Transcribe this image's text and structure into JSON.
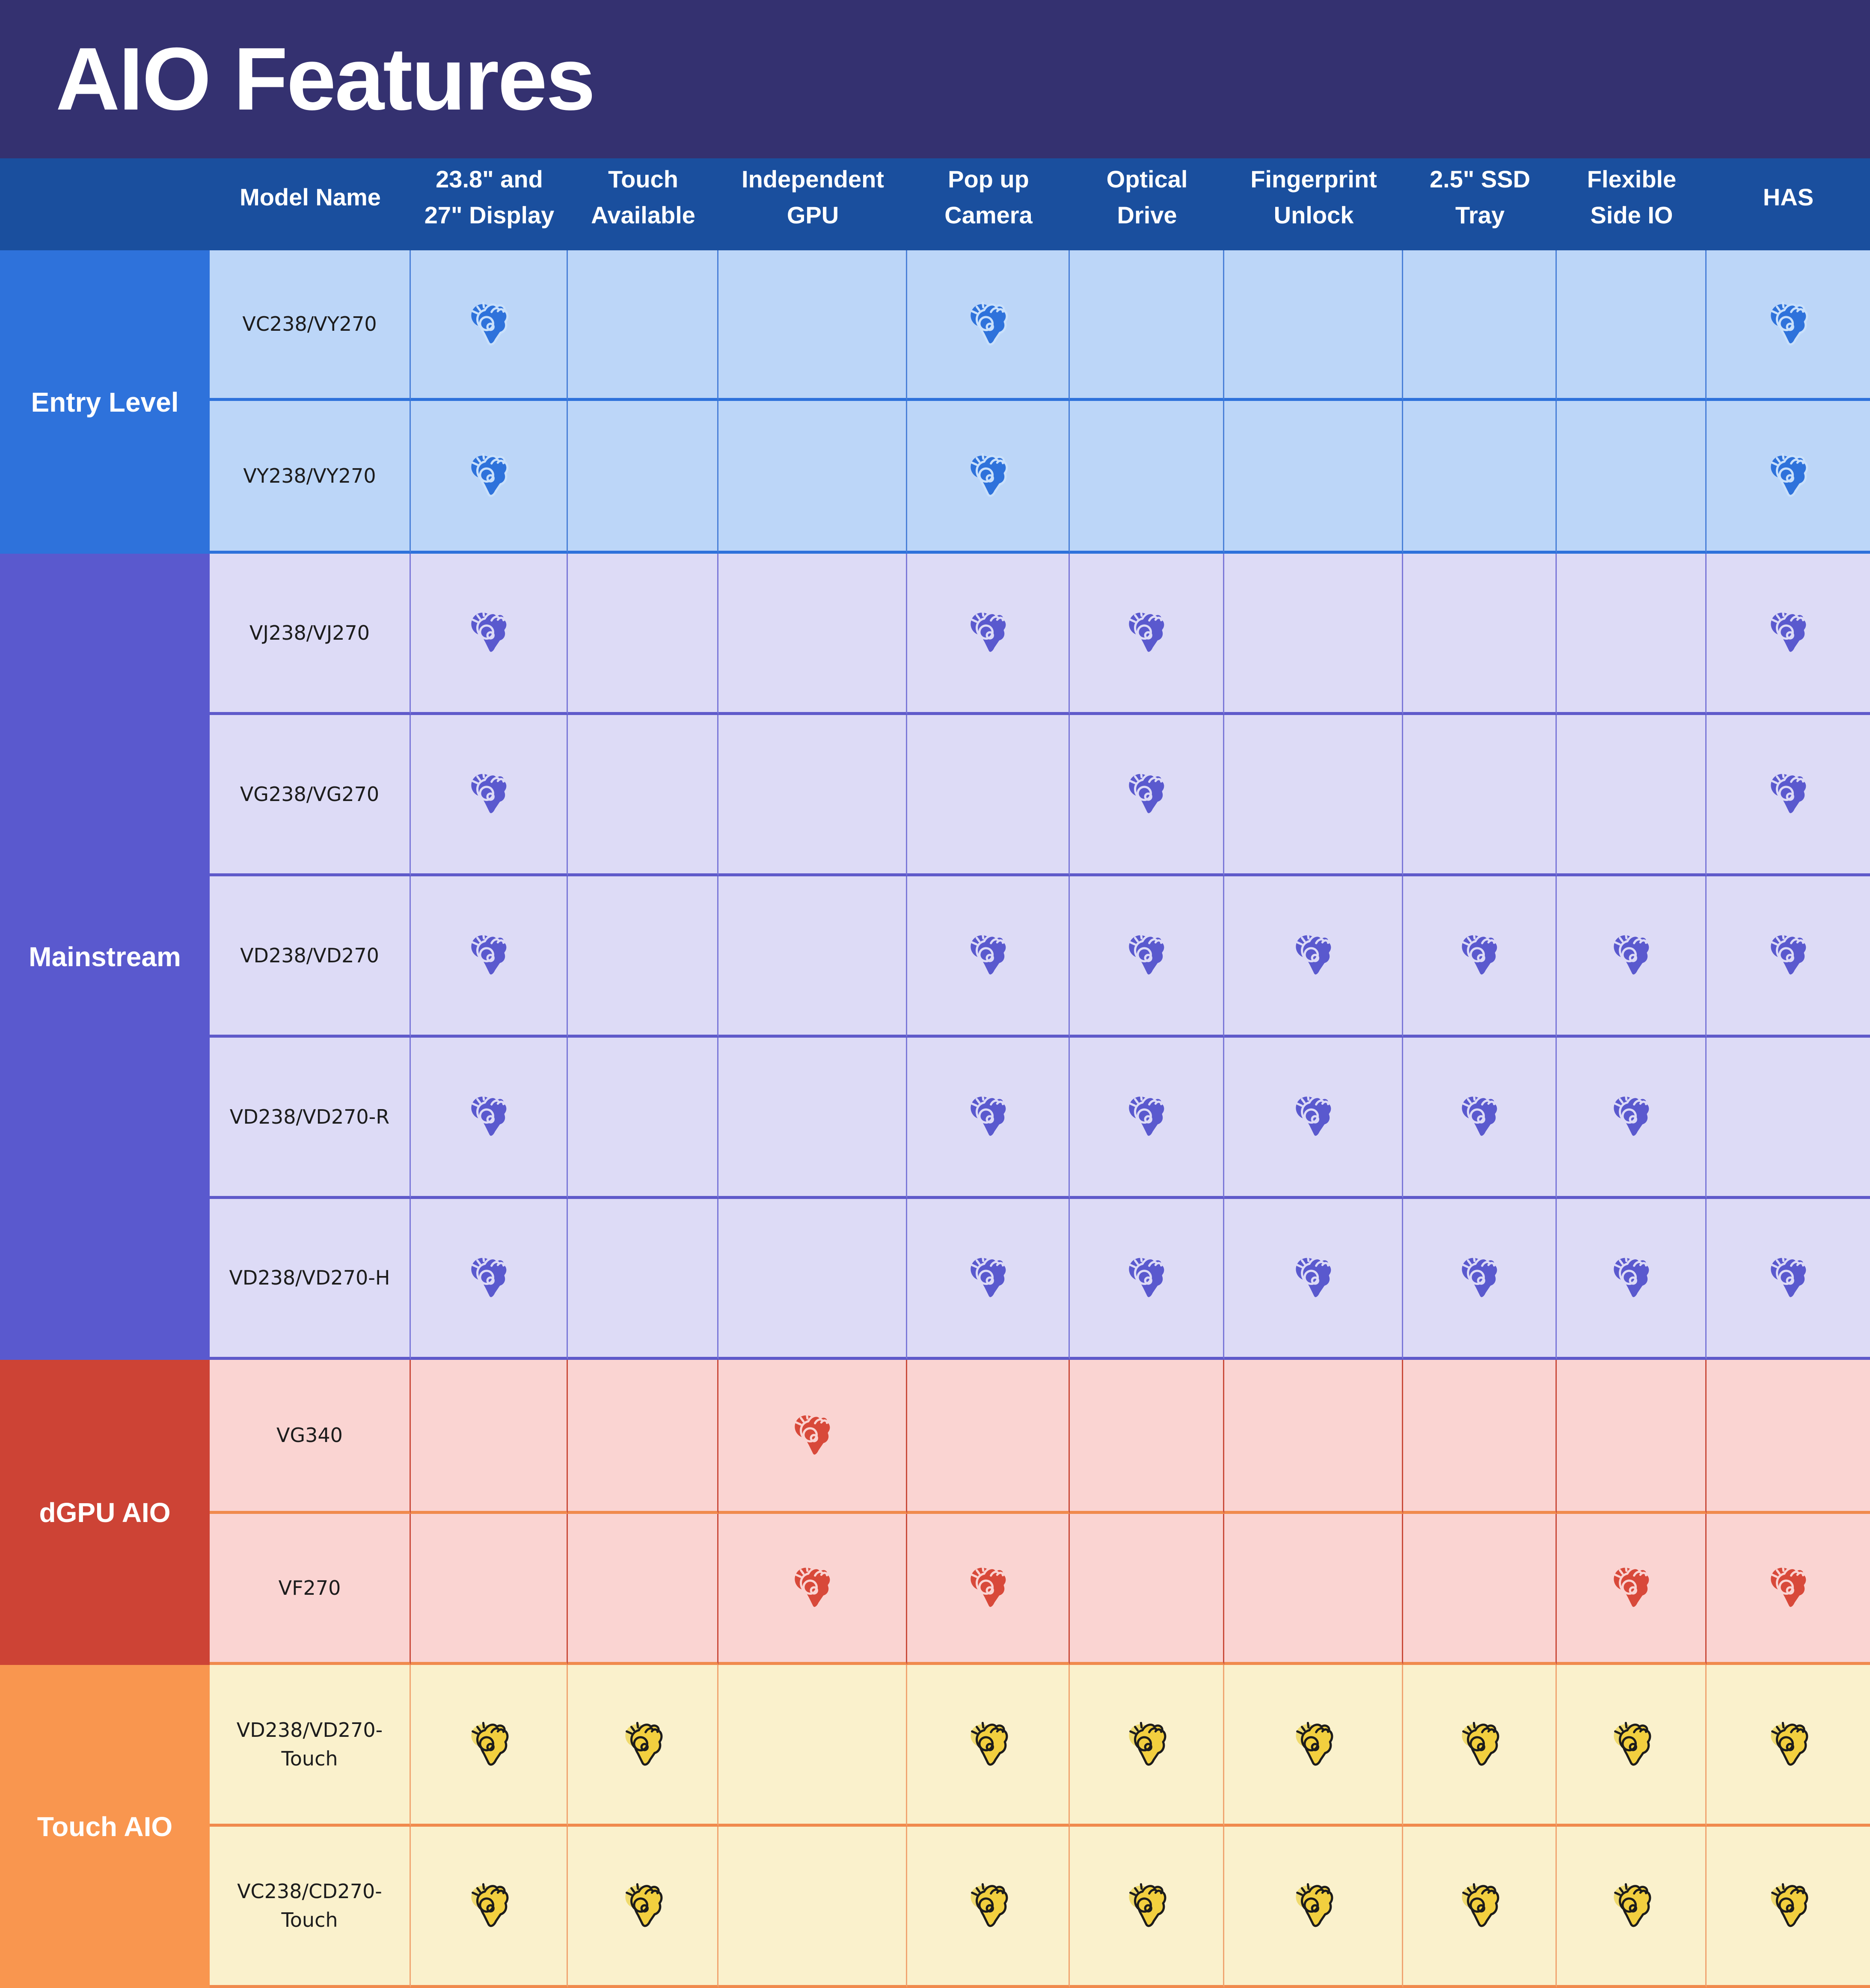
{
  "title": "AIO Features",
  "colors": {
    "title_bar_bg": "#343170",
    "title_text": "#FFFFFF",
    "header_bg": "#1A4F9E",
    "header_text": "#FFFFFF",
    "model_text": "#1C1C1C"
  },
  "icon_legend": {
    "ok-hand-icon": "feature supported"
  },
  "chart_data": {
    "type": "table",
    "title": "AIO Features",
    "feature_keys": [
      "display-23-27",
      "touch-available",
      "independent-gpu",
      "popup-camera",
      "optical-drive",
      "fingerprint-unlock",
      "ssd-tray",
      "flexible-side-io",
      "has"
    ],
    "columns": [
      {
        "label": "Model Name",
        "line1": "Model Name",
        "line2": ""
      },
      {
        "label": "23.8\" and 27\" Display",
        "line1": "23.8\" and",
        "line2": "27\" Display"
      },
      {
        "label": "Touch Available",
        "line1": "Touch",
        "line2": "Available"
      },
      {
        "label": "Independent GPU",
        "line1": "Independent",
        "line2": "GPU"
      },
      {
        "label": "Pop up Camera",
        "line1": "Pop up",
        "line2": "Camera"
      },
      {
        "label": "Optical Drive",
        "line1": "Optical",
        "line2": "Drive"
      },
      {
        "label": "Fingerprint Unlock",
        "line1": "Fingerprint",
        "line2": "Unlock"
      },
      {
        "label": "2.5\" SSD Tray",
        "line1": "2.5\" SSD",
        "line2": "Tray"
      },
      {
        "label": "Flexible Side IO",
        "line1": "Flexible",
        "line2": "Side IO"
      },
      {
        "label": "HAS",
        "line1": "HAS",
        "line2": ""
      }
    ],
    "groups": [
      {
        "label": "Entry Level",
        "category_bg": "#2E72DB",
        "cell_bg": "#BCD6F8",
        "grid_line": "#4A80D8",
        "row_divider": "#2E72DB",
        "icon_fill": "#2E72DB",
        "icon_detail": "#C9E0FB",
        "rows": [
          {
            "model": "VC238/VY270",
            "features": [
              true,
              false,
              false,
              true,
              false,
              false,
              false,
              false,
              true
            ]
          },
          {
            "model": "VY238/VY270",
            "features": [
              true,
              false,
              false,
              true,
              false,
              false,
              false,
              false,
              true
            ]
          }
        ]
      },
      {
        "label": "Mainstream",
        "category_bg": "#5A59CE",
        "cell_bg": "#DDDBF6",
        "grid_line": "#7B78D8",
        "row_divider": "#5F5ACA",
        "icon_fill": "#5A59CE",
        "icon_detail": "#DDDBF6",
        "rows": [
          {
            "model": "VJ238/VJ270",
            "features": [
              true,
              false,
              false,
              true,
              true,
              false,
              false,
              false,
              true
            ]
          },
          {
            "model": "VG238/VG270",
            "features": [
              true,
              false,
              false,
              false,
              true,
              false,
              false,
              false,
              true
            ]
          },
          {
            "model": "VD238/VD270",
            "features": [
              true,
              false,
              false,
              true,
              true,
              true,
              true,
              true,
              true
            ]
          },
          {
            "model": "VD238/VD270-R",
            "features": [
              true,
              false,
              false,
              true,
              true,
              true,
              true,
              true,
              false
            ]
          },
          {
            "model": "VD238/VD270-H",
            "features": [
              true,
              false,
              false,
              true,
              true,
              true,
              true,
              true,
              true
            ]
          }
        ]
      },
      {
        "label": "dGPU AIO",
        "category_bg": "#CD4335",
        "cell_bg": "#FAD4D2",
        "grid_line": "#C94A3A",
        "row_divider": "#F08A4D",
        "icon_fill": "#D8493A",
        "icon_detail": "#FAD4D2",
        "rows": [
          {
            "model": "VG340",
            "features": [
              false,
              false,
              true,
              false,
              false,
              false,
              false,
              false,
              false
            ]
          },
          {
            "model": "VF270",
            "features": [
              false,
              false,
              true,
              true,
              false,
              false,
              false,
              true,
              true
            ]
          }
        ]
      },
      {
        "label": "Touch AIO",
        "category_bg": "#F9964F",
        "cell_bg": "#FAF1CC",
        "grid_line": "#F0A470",
        "row_divider": "#F08A4D",
        "icon_fill": "#F2CF3F",
        "icon_detail": "#1C1C1C",
        "icon_halo": "#EFDA6E",
        "rows": [
          {
            "model": "VD238/VD270-Touch",
            "features": [
              true,
              true,
              false,
              true,
              true,
              true,
              true,
              true,
              true
            ]
          },
          {
            "model": "VC238/CD270-Touch",
            "features": [
              true,
              true,
              false,
              true,
              true,
              true,
              true,
              true,
              true
            ]
          }
        ]
      }
    ]
  }
}
